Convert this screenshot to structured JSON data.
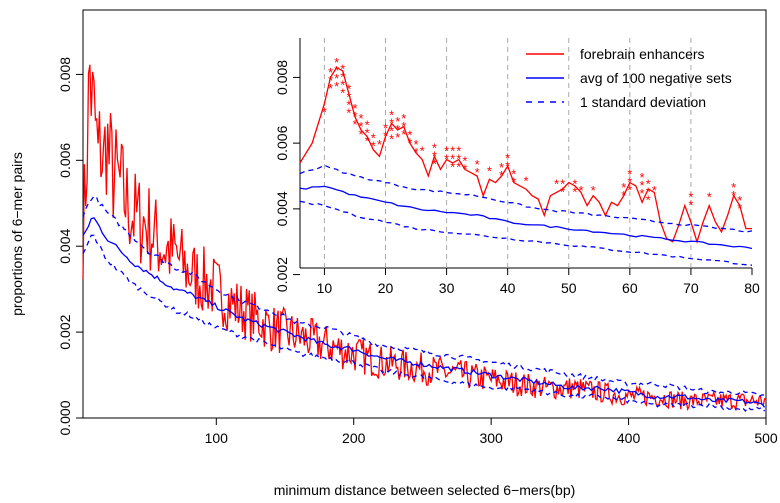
{
  "chart_data": [
    {
      "type": "line",
      "xlabel": "minimum distance between selected 6−mers(bp)",
      "ylabel": "proportions of 6−mer pairs",
      "xlim": [
        3,
        500
      ],
      "ylim": [
        0,
        0.0095
      ],
      "x_ticks": [
        100,
        200,
        300,
        400,
        500
      ],
      "x_tick_labels": [
        "100",
        "200",
        "300",
        "400",
        "500"
      ],
      "y_ticks": [
        0,
        0.002,
        0.004,
        0.006,
        0.008
      ],
      "y_tick_labels": [
        "0.000",
        "0.002",
        "0.004",
        "0.006",
        "0.008"
      ],
      "grid": false,
      "series": [
        {
          "name": "forebrain enhancers",
          "color": "#ff0000",
          "style": "solid",
          "x": [
            3,
            5,
            8,
            10,
            12,
            14,
            16,
            18,
            20,
            22,
            25,
            30,
            35,
            40,
            50,
            60,
            70,
            80,
            90,
            100,
            110,
            120,
            130,
            140,
            150,
            160,
            170,
            180,
            190,
            200,
            220,
            240,
            260,
            280,
            300,
            320,
            340,
            360,
            380,
            400,
            420,
            440,
            460,
            480,
            500
          ],
          "y": [
            0.0043,
            0.0055,
            0.0081,
            0.0072,
            0.0068,
            0.006,
            0.0064,
            0.0058,
            0.0066,
            0.006,
            0.0057,
            0.0054,
            0.005,
            0.0047,
            0.0045,
            0.004,
            0.0038,
            0.0034,
            0.0032,
            0.003,
            0.0027,
            0.0025,
            0.0023,
            0.0021,
            0.002,
            0.0019,
            0.0018,
            0.0017,
            0.0016,
            0.0015,
            0.0013,
            0.0012,
            0.0011,
            0.001,
            0.0009,
            0.0008,
            0.0007,
            0.0007,
            0.0006,
            0.0005,
            0.0005,
            0.0004,
            0.0004,
            0.0004,
            0.0004
          ]
        },
        {
          "name": "avg of 100 negative sets",
          "color": "#0000ff",
          "style": "solid",
          "x": [
            3,
            10,
            20,
            30,
            40,
            50,
            60,
            70,
            80,
            100,
            120,
            140,
            160,
            180,
            200,
            220,
            240,
            260,
            280,
            300,
            320,
            340,
            360,
            380,
            400,
            420,
            440,
            460,
            480,
            500
          ],
          "y": [
            0.0042,
            0.0047,
            0.0042,
            0.0039,
            0.0036,
            0.0034,
            0.0032,
            0.003,
            0.0029,
            0.0026,
            0.0023,
            0.0021,
            0.0019,
            0.0017,
            0.0016,
            0.0014,
            0.0013,
            0.0012,
            0.0011,
            0.001,
            0.0009,
            0.0008,
            0.0007,
            0.0007,
            0.0006,
            0.0005,
            0.0005,
            0.0004,
            0.0004,
            0.0003
          ]
        },
        {
          "name": "1 standard deviation",
          "color": "#0000ff",
          "style": "dashed",
          "x": [
            3,
            10,
            20,
            30,
            40,
            50,
            60,
            70,
            80,
            100,
            120,
            140,
            160,
            180,
            200,
            220,
            240,
            260,
            280,
            300,
            320,
            340,
            360,
            380,
            400,
            420,
            440,
            460,
            480,
            500
          ],
          "y": [
            0.0047,
            0.0052,
            0.0048,
            0.0045,
            0.0042,
            0.0039,
            0.0037,
            0.0035,
            0.0034,
            0.003,
            0.0027,
            0.0025,
            0.0022,
            0.0021,
            0.0019,
            0.0017,
            0.0016,
            0.0015,
            0.0014,
            0.0013,
            0.0012,
            0.0011,
            0.001,
            0.0009,
            0.0008,
            0.0008,
            0.0007,
            0.0006,
            0.0006,
            0.0005
          ]
        },
        {
          "name": "1 standard deviation",
          "color": "#0000ff",
          "style": "dashed",
          "x": [
            3,
            10,
            20,
            30,
            40,
            50,
            60,
            70,
            80,
            100,
            120,
            140,
            160,
            180,
            200,
            220,
            240,
            260,
            280,
            300,
            320,
            340,
            360,
            380,
            400,
            420,
            440,
            460,
            480,
            500
          ],
          "y": [
            0.0038,
            0.0043,
            0.0037,
            0.0034,
            0.0031,
            0.0029,
            0.0027,
            0.0025,
            0.0024,
            0.0021,
            0.0019,
            0.0017,
            0.0015,
            0.0014,
            0.0013,
            0.0011,
            0.001,
            0.0009,
            0.0008,
            0.0007,
            0.0007,
            0.0006,
            0.0005,
            0.0005,
            0.0004,
            0.0003,
            0.0003,
            0.0003,
            0.0002,
            0.0002
          ]
        }
      ]
    },
    {
      "type": "line",
      "inset": true,
      "legend_placement": "top-right",
      "xlim": [
        6,
        80
      ],
      "ylim": [
        0.0022,
        0.0092
      ],
      "x_ticks": [
        10,
        20,
        30,
        40,
        50,
        60,
        70,
        80
      ],
      "x_tick_labels": [
        "10",
        "20",
        "30",
        "40",
        "50",
        "60",
        "70",
        "80"
      ],
      "y_ticks": [
        0.002,
        0.004,
        0.006,
        0.008
      ],
      "y_tick_labels": [
        "0.002",
        "0.004",
        "0.006",
        "0.008"
      ],
      "vertical_gridlines": [
        10,
        20,
        30,
        40,
        50,
        60,
        70
      ],
      "legend": [
        {
          "label": "forebrain enhancers",
          "color": "#ff0000",
          "style": "solid"
        },
        {
          "label": "avg of 100 negative sets",
          "color": "#0000ff",
          "style": "solid"
        },
        {
          "label": "1 standard deviation",
          "color": "#0000ff",
          "style": "dashed"
        }
      ],
      "series": [
        {
          "name": "forebrain enhancers",
          "color": "#ff0000",
          "style": "solid",
          "x": [
            6,
            8,
            10,
            11,
            12,
            13,
            14,
            15,
            16,
            17,
            18,
            19,
            20,
            21,
            22,
            23,
            24,
            25,
            26,
            27,
            28,
            29,
            30,
            31,
            32,
            33,
            34,
            35,
            36,
            37,
            38,
            39,
            40,
            41,
            42,
            43,
            44,
            45,
            46,
            47,
            48,
            49,
            50,
            51,
            52,
            53,
            54,
            55,
            56,
            57,
            58,
            59,
            60,
            61,
            62,
            63,
            64,
            65,
            66,
            67,
            68,
            69,
            70,
            71,
            72,
            73,
            74,
            75,
            76,
            77,
            78,
            79,
            80
          ],
          "y": [
            0.0054,
            0.006,
            0.0072,
            0.008,
            0.0083,
            0.0082,
            0.0075,
            0.0068,
            0.0064,
            0.0062,
            0.0058,
            0.0056,
            0.0062,
            0.0066,
            0.0064,
            0.0065,
            0.006,
            0.0057,
            0.0055,
            0.005,
            0.0056,
            0.0052,
            0.0055,
            0.0054,
            0.0055,
            0.0052,
            0.0051,
            0.005,
            0.0044,
            0.0049,
            0.0048,
            0.005,
            0.0053,
            0.0048,
            0.0047,
            0.0046,
            0.0044,
            0.0043,
            0.0038,
            0.0044,
            0.0045,
            0.0046,
            0.0048,
            0.0047,
            0.0045,
            0.0041,
            0.0044,
            0.0042,
            0.0038,
            0.0042,
            0.0041,
            0.0044,
            0.0048,
            0.0047,
            0.0042,
            0.0046,
            0.0045,
            0.0036,
            0.0031,
            0.003,
            0.0035,
            0.0041,
            0.0036,
            0.003,
            0.0036,
            0.0041,
            0.0036,
            0.0033,
            0.0038,
            0.0044,
            0.0041,
            0.0034,
            0.0034
          ]
        },
        {
          "name": "avg of 100 negative sets",
          "color": "#0000ff",
          "style": "solid",
          "x": [
            6,
            10,
            15,
            20,
            25,
            30,
            35,
            40,
            45,
            50,
            55,
            60,
            65,
            70,
            75,
            80
          ],
          "y": [
            0.0046,
            0.0047,
            0.0044,
            0.0042,
            0.004,
            0.0039,
            0.0038,
            0.0036,
            0.0035,
            0.0034,
            0.0033,
            0.0032,
            0.0031,
            0.003,
            0.0029,
            0.0028
          ]
        },
        {
          "name": "1 standard deviation",
          "color": "#0000ff",
          "style": "dashed",
          "x": [
            6,
            10,
            15,
            20,
            25,
            30,
            35,
            40,
            45,
            50,
            55,
            60,
            65,
            70,
            75,
            80
          ],
          "y": [
            0.0051,
            0.0053,
            0.005,
            0.0048,
            0.0046,
            0.0045,
            0.0044,
            0.0042,
            0.004,
            0.0039,
            0.0038,
            0.0037,
            0.0036,
            0.0035,
            0.0034,
            0.0033
          ]
        },
        {
          "name": "1 standard deviation",
          "color": "#0000ff",
          "style": "dashed",
          "x": [
            6,
            10,
            15,
            20,
            25,
            30,
            35,
            40,
            45,
            50,
            55,
            60,
            65,
            70,
            75,
            80
          ],
          "y": [
            0.0042,
            0.0041,
            0.0038,
            0.0036,
            0.0034,
            0.0033,
            0.0032,
            0.0031,
            0.003,
            0.0029,
            0.0028,
            0.0027,
            0.0026,
            0.0025,
            0.0024,
            0.0023
          ]
        }
      ],
      "annotations": {
        "symbol": "*",
        "color": "#ff0000",
        "points": [
          {
            "x": 10,
            "y": 0.007,
            "count": 1
          },
          {
            "x": 11,
            "y": 0.0082,
            "count": 3
          },
          {
            "x": 12,
            "y": 0.0085,
            "count": 4
          },
          {
            "x": 13,
            "y": 0.0083,
            "count": 4
          },
          {
            "x": 14,
            "y": 0.0077,
            "count": 4
          },
          {
            "x": 15,
            "y": 0.0071,
            "count": 3
          },
          {
            "x": 16,
            "y": 0.0068,
            "count": 3
          },
          {
            "x": 17,
            "y": 0.0066,
            "count": 3
          },
          {
            "x": 18,
            "y": 0.0062,
            "count": 2
          },
          {
            "x": 19,
            "y": 0.006,
            "count": 1
          },
          {
            "x": 20,
            "y": 0.0065,
            "count": 2
          },
          {
            "x": 21,
            "y": 0.0069,
            "count": 4
          },
          {
            "x": 22,
            "y": 0.0067,
            "count": 3
          },
          {
            "x": 23,
            "y": 0.0068,
            "count": 3
          },
          {
            "x": 24,
            "y": 0.0063,
            "count": 2
          },
          {
            "x": 25,
            "y": 0.006,
            "count": 2
          },
          {
            "x": 26,
            "y": 0.0058,
            "count": 1
          },
          {
            "x": 28,
            "y": 0.0059,
            "count": 3
          },
          {
            "x": 30,
            "y": 0.0058,
            "count": 2
          },
          {
            "x": 31,
            "y": 0.0058,
            "count": 3
          },
          {
            "x": 32,
            "y": 0.0058,
            "count": 3
          },
          {
            "x": 33,
            "y": 0.0055,
            "count": 2
          },
          {
            "x": 35,
            "y": 0.0054,
            "count": 2
          },
          {
            "x": 37,
            "y": 0.0052,
            "count": 1
          },
          {
            "x": 39,
            "y": 0.0053,
            "count": 2
          },
          {
            "x": 40,
            "y": 0.0056,
            "count": 2
          },
          {
            "x": 41,
            "y": 0.0051,
            "count": 2
          },
          {
            "x": 43,
            "y": 0.0049,
            "count": 1
          },
          {
            "x": 48,
            "y": 0.0048,
            "count": 1
          },
          {
            "x": 49,
            "y": 0.0048,
            "count": 2
          },
          {
            "x": 51,
            "y": 0.0048,
            "count": 2
          },
          {
            "x": 52,
            "y": 0.0046,
            "count": 1
          },
          {
            "x": 54,
            "y": 0.0046,
            "count": 1
          },
          {
            "x": 59,
            "y": 0.0047,
            "count": 2
          },
          {
            "x": 60,
            "y": 0.0051,
            "count": 3
          },
          {
            "x": 62,
            "y": 0.005,
            "count": 3
          },
          {
            "x": 63,
            "y": 0.0048,
            "count": 3
          },
          {
            "x": 64,
            "y": 0.0046,
            "count": 1
          },
          {
            "x": 70,
            "y": 0.0044,
            "count": 2
          },
          {
            "x": 73,
            "y": 0.0044,
            "count": 1
          },
          {
            "x": 77,
            "y": 0.0047,
            "count": 2
          },
          {
            "x": 78,
            "y": 0.0043,
            "count": 2
          }
        ]
      }
    }
  ]
}
